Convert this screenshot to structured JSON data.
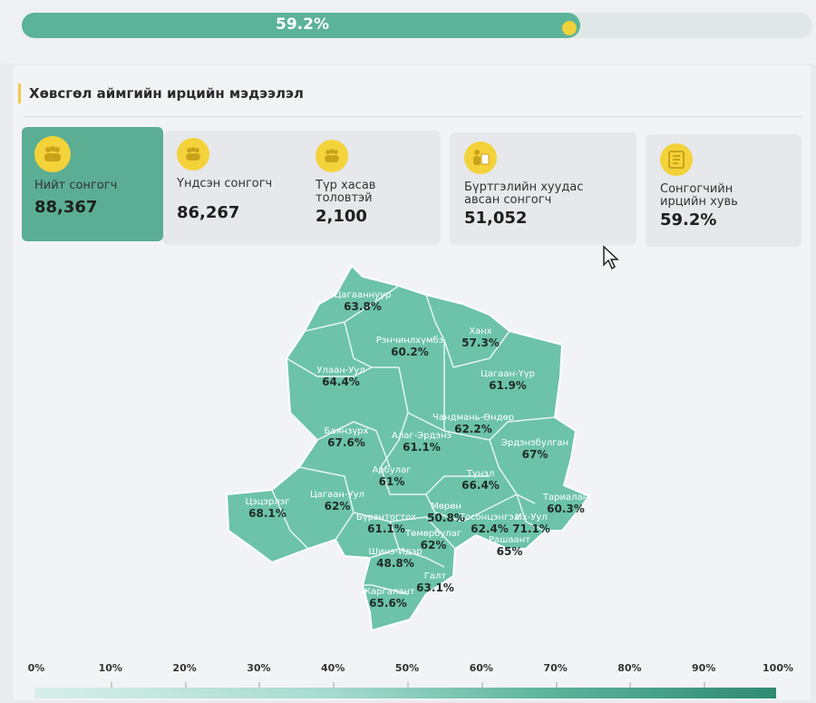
{
  "progress": {
    "label": "59.2%",
    "percent": 59.2
  },
  "section": {
    "title": "Хөвсгөл аймгийн ирцийн мэдээлэл"
  },
  "stats": {
    "total": {
      "label": "Нийт сонгогч",
      "value": "88,367",
      "icon": "people-group-icon"
    },
    "main": {
      "label": "Үндсэн сонгогч",
      "value": "86,267",
      "icon": "people-group-icon"
    },
    "temp": {
      "label": "Түр хасав толовтэй",
      "value": "2,100",
      "icon": "people-group-icon"
    },
    "registered": {
      "label": "Бүртгэлийн хуудас авсан сонгогч",
      "value": "51,052",
      "icon": "person-document-icon"
    },
    "turnout": {
      "label": "Сонгогчийн ирцийн хувь",
      "value": "59.2%",
      "icon": "checklist-icon"
    }
  },
  "map": {
    "regions": [
      {
        "name": "Цагааннуур",
        "pct": "63.8%"
      },
      {
        "name": "Рэнчинлхүмбэ",
        "pct": "60.2%"
      },
      {
        "name": "Ханх",
        "pct": "57.3%"
      },
      {
        "name": "Улаан-Уул",
        "pct": "64.4%"
      },
      {
        "name": "Цагаан-Үүр",
        "pct": "61.9%"
      },
      {
        "name": "Чандмань-Өндөр",
        "pct": "62.2%"
      },
      {
        "name": "Баянзүрх",
        "pct": "67.6%"
      },
      {
        "name": "Алаг-Эрдэнэ",
        "pct": "61.1%"
      },
      {
        "name": "Эрдэнэбулган",
        "pct": "67%"
      },
      {
        "name": "Арбулаг",
        "pct": "61%"
      },
      {
        "name": "Түнэл",
        "pct": "66.4%"
      },
      {
        "name": "Цэцэрлэг",
        "pct": "68.1%"
      },
      {
        "name": "Цагаан-Уул",
        "pct": "62%"
      },
      {
        "name": "Мөрөн",
        "pct": "50.8%"
      },
      {
        "name": "Тариалан",
        "pct": "60.3%"
      },
      {
        "name": "Бүрэнтогтох",
        "pct": "61.1%"
      },
      {
        "name": "Тосонцэнгэл",
        "pct": "62.4%"
      },
      {
        "name": "Их-Уул",
        "pct": "71.1%"
      },
      {
        "name": "Төмөрбулаг",
        "pct": "62%"
      },
      {
        "name": "Рашаант",
        "pct": "65%"
      },
      {
        "name": "Шинэ-Идэр",
        "pct": "48.8%"
      },
      {
        "name": "Галт",
        "pct": "63.1%"
      },
      {
        "name": "Жаргалант",
        "pct": "65.6%"
      }
    ]
  },
  "scale": {
    "ticks": [
      "0%",
      "10%",
      "20%",
      "30%",
      "40%",
      "50%",
      "60%",
      "70%",
      "80%",
      "90%",
      "100%"
    ]
  },
  "colors": {
    "accent": "#5bae93",
    "highlight": "#f4d23a"
  }
}
